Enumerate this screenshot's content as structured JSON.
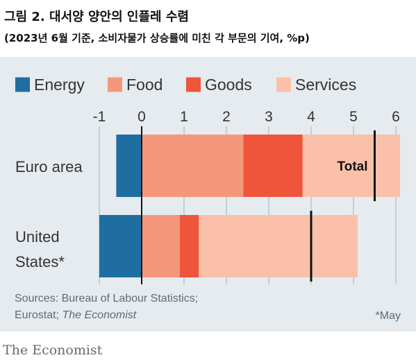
{
  "header": {
    "title": "그림 2. 대서양 양안의 인플레 수렴",
    "subtitle": "(2023년 6월 기준, 소비자물가 상승률에 미친 각 부문의 기여, %p)"
  },
  "chart_data": {
    "type": "bar",
    "orientation": "horizontal",
    "stacked": true,
    "categories": [
      "Euro area",
      "United States*"
    ],
    "category_lines": [
      [
        "Euro area"
      ],
      [
        "United",
        "States*"
      ]
    ],
    "series": [
      {
        "name": "Energy",
        "values": [
          -0.6,
          -1.0
        ],
        "color": "#1e6ea1"
      },
      {
        "name": "Food",
        "values": [
          2.4,
          0.9
        ],
        "color": "#f4977a"
      },
      {
        "name": "Goods",
        "values": [
          1.4,
          0.45
        ],
        "color": "#ef553b"
      },
      {
        "name": "Services",
        "values": [
          2.3,
          3.75
        ],
        "color": "#fbc0aa"
      }
    ],
    "totals": [
      5.5,
      4.0
    ],
    "total_label": "Total",
    "xlim": [
      -1,
      6
    ],
    "xticks": [
      -1,
      0,
      1,
      2,
      3,
      4,
      5,
      6
    ],
    "grid": true,
    "legend_position": "top"
  },
  "footer": {
    "source_line1": "Sources: Bureau of Labour Statistics;",
    "source_line2_prefix": "Eurostat; ",
    "source_line2_italic": "The Economist",
    "footnote": "*May",
    "logo": "The Economist"
  }
}
